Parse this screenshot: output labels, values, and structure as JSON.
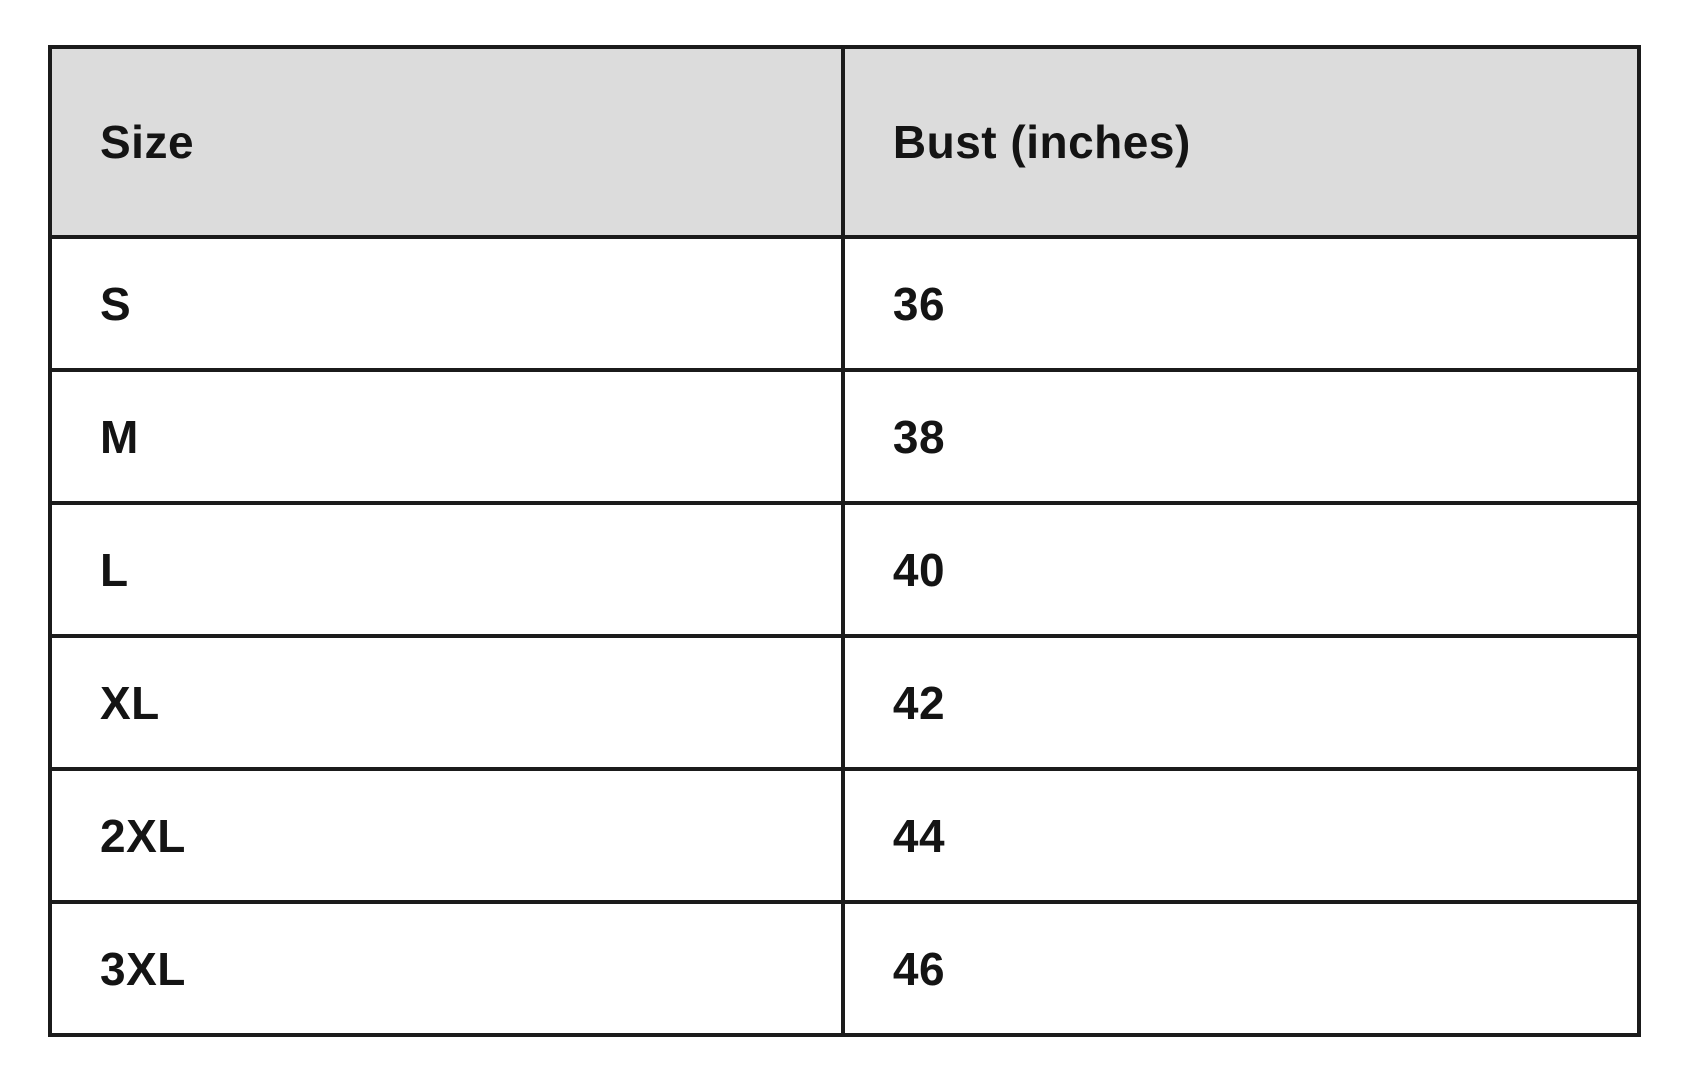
{
  "page": {
    "background_color": "#ffffff",
    "header_background_color": "#dcdcdc",
    "border_color": "#1b1b1b",
    "text_color": "#141414"
  },
  "table": {
    "columns": {
      "size_label": "Size",
      "bust_label": "Bust (inches)"
    },
    "rows": [
      {
        "size": "S",
        "bust": "36"
      },
      {
        "size": "M",
        "bust": "38"
      },
      {
        "size": "L",
        "bust": "40"
      },
      {
        "size": "XL",
        "bust": "42"
      },
      {
        "size": "2XL",
        "bust": "44"
      },
      {
        "size": "3XL",
        "bust": "46"
      }
    ]
  },
  "chart_data": {
    "type": "table",
    "title": "",
    "columns": [
      "Size",
      "Bust (inches)"
    ],
    "rows": [
      [
        "S",
        36
      ],
      [
        "M",
        38
      ],
      [
        "L",
        40
      ],
      [
        "XL",
        42
      ],
      [
        "2XL",
        44
      ],
      [
        "3XL",
        46
      ]
    ]
  }
}
